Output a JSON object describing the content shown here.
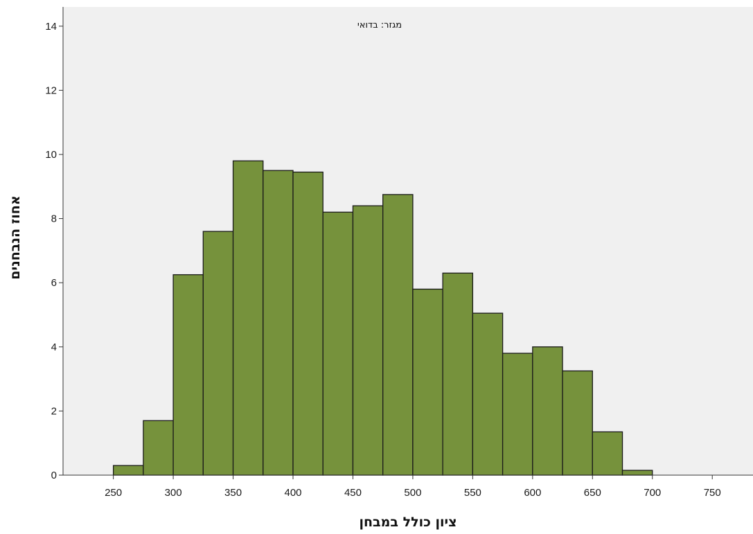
{
  "chart_data": {
    "type": "bar",
    "title": "מגזר: בדואי",
    "xlabel": "ציון כולל במבחן",
    "ylabel": "אחוז הנבחנים",
    "bin_edges": [
      250,
      275,
      300,
      325,
      350,
      375,
      400,
      425,
      450,
      475,
      500,
      525,
      550,
      575,
      600,
      625,
      650,
      675,
      700
    ],
    "values": [
      0.3,
      1.7,
      6.25,
      7.6,
      9.8,
      9.5,
      9.45,
      8.2,
      8.4,
      8.75,
      5.8,
      6.3,
      5.05,
      3.8,
      4.0,
      3.25,
      1.35,
      0.15
    ],
    "xlim": [
      208,
      784
    ],
    "ylim": [
      0,
      14.6
    ],
    "xticks": [
      250,
      300,
      350,
      400,
      450,
      500,
      550,
      600,
      650,
      700,
      750
    ],
    "yticks": [
      0,
      2,
      4,
      6,
      8,
      10,
      12,
      14
    ],
    "grid": false,
    "colors": {
      "bar": "#76923c",
      "bar_edge": "#1a1a1a",
      "plot_background": "#f0f0f0",
      "axis": "#333333"
    }
  }
}
